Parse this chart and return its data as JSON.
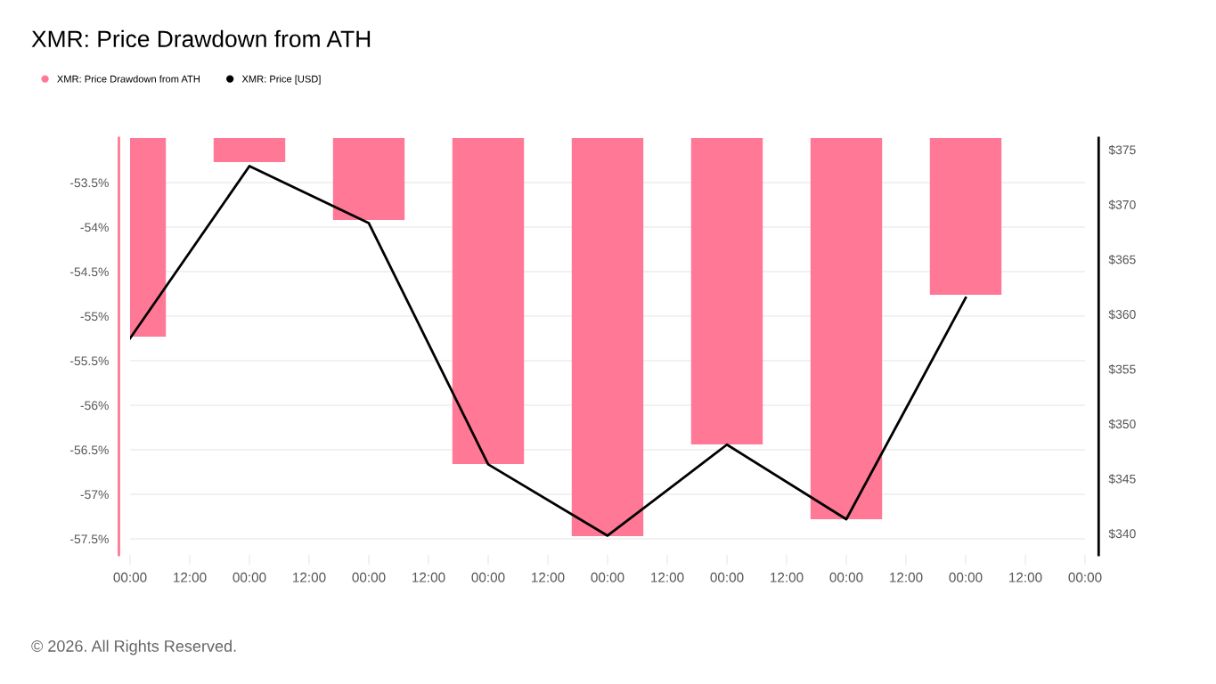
{
  "chart_data": {
    "type": "bar",
    "title": "XMR: Price Drawdown from ATH",
    "x": [
      "--01-01T00:00",
      "--01-02T00:00",
      "--01-03T00:00",
      "--01-04T00:00",
      "--01-05T00:00",
      "--01-06T00:00",
      "--01-07T00:00",
      "--01-08T00:00"
    ],
    "series": [
      {
        "name": "XMR: Price Drawdown from ATH",
        "color": "#ff7895",
        "values": [
          -55.23,
          -53.27,
          -53.92,
          -56.66,
          -57.47,
          -56.44,
          -57.28,
          -54.76
        ]
      },
      {
        "name": "XMR: Price [USD]",
        "type": "line",
        "axis": "y2",
        "color": "#000000",
        "values": [
          357.8,
          373.5,
          368.3,
          346.3,
          339.8,
          348.1,
          341.3,
          361.5
        ]
      }
    ],
    "xlim": [
      "--01-01T00:00",
      "--01-09T00:00"
    ],
    "xticks": [
      {
        "value": "--01-01T00:00",
        "label": "00:00"
      },
      {
        "value": "--01-01T12:00",
        "label": "12:00"
      },
      {
        "value": "--01-02T00:00",
        "label": "00:00"
      },
      {
        "value": "--01-02T12:00",
        "label": "12:00"
      },
      {
        "value": "--01-03T00:00",
        "label": "00:00"
      },
      {
        "value": "--01-03T12:00",
        "label": "12:00"
      },
      {
        "value": "--01-04T00:00",
        "label": "00:00"
      },
      {
        "value": "--01-04T12:00",
        "label": "12:00"
      },
      {
        "value": "--01-05T00:00",
        "label": "00:00"
      },
      {
        "value": "--01-05T12:00",
        "label": "12:00"
      },
      {
        "value": "--01-06T00:00",
        "label": "00:00"
      },
      {
        "value": "--01-06T12:00",
        "label": "12:00"
      },
      {
        "value": "--01-07T00:00",
        "label": "00:00"
      },
      {
        "value": "--01-07T12:00",
        "label": "12:00"
      },
      {
        "value": "--01-08T00:00",
        "label": "00:00"
      },
      {
        "value": "--01-08T12:00",
        "label": "12:00"
      },
      {
        "value": "--01-09T00:00",
        "label": "00:00"
      }
    ],
    "ylim": [
      -57.68,
      -53.0
    ],
    "yticks": [
      {
        "value": -57.5,
        "label": "-57.5%"
      },
      {
        "value": -57,
        "label": "-57%"
      },
      {
        "value": -56.5,
        "label": "-56.5%"
      },
      {
        "value": -56,
        "label": "-56%"
      },
      {
        "value": -55.5,
        "label": "-55.5%"
      },
      {
        "value": -55,
        "label": "-55%"
      },
      {
        "value": -54.5,
        "label": "-54.5%"
      },
      {
        "value": -54,
        "label": "-54%"
      },
      {
        "value": -53.5,
        "label": "-53.5%"
      }
    ],
    "y2lim": [
      338.05,
      376.06
    ],
    "y2ticks": [
      {
        "value": 340,
        "label": "$340"
      },
      {
        "value": 345,
        "label": "$345"
      },
      {
        "value": 350,
        "label": "$350"
      },
      {
        "value": 355,
        "label": "$355"
      },
      {
        "value": 360,
        "label": "$360"
      },
      {
        "value": 365,
        "label": "$365"
      },
      {
        "value": 370,
        "label": "$370"
      },
      {
        "value": 375,
        "label": "$375"
      }
    ],
    "grid": "y",
    "legend": "top left",
    "annotations": [
      "© 2026. All Rights Reserved."
    ]
  }
}
